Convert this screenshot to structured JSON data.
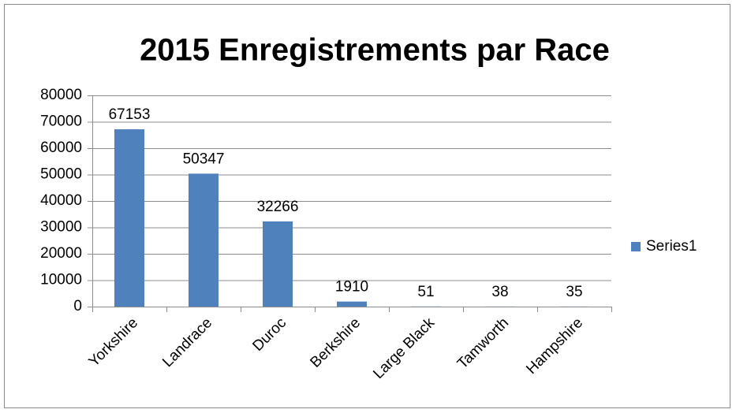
{
  "chart_data": {
    "type": "bar",
    "title": "2015 Enregistrements par Race",
    "categories": [
      "Yorkshire",
      "Landrace",
      "Duroc",
      "Berkshire",
      "Large Black",
      "Tamworth",
      "Hampshire"
    ],
    "series": [
      {
        "name": "Series1",
        "color": "#4f81bd",
        "values": [
          67153,
          50347,
          32266,
          1910,
          51,
          38,
          35
        ]
      }
    ],
    "ylim": [
      0,
      80000
    ],
    "yticks": [
      0,
      10000,
      20000,
      30000,
      40000,
      50000,
      60000,
      70000,
      80000
    ],
    "grid": true,
    "legend": "right"
  }
}
